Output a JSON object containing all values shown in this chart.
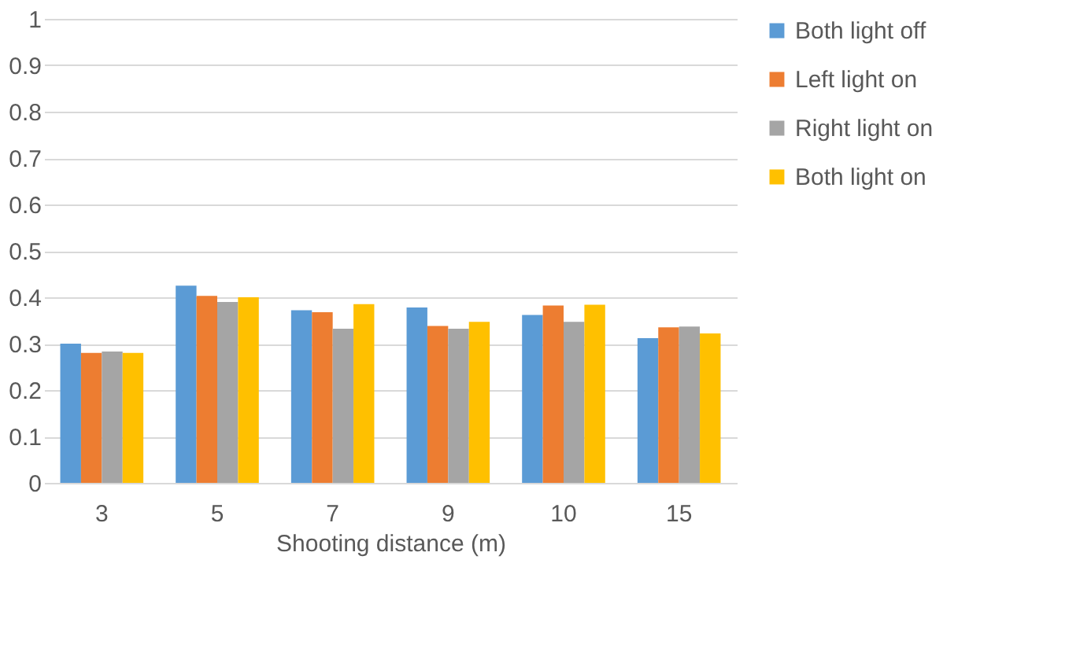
{
  "chart_data": {
    "type": "bar",
    "xlabel": "Shooting distance (m)",
    "categories": [
      "3",
      "5",
      "7",
      "9",
      "10",
      "15"
    ],
    "series": [
      {
        "name": "Both light off",
        "color": "#5b9bd5",
        "values": [
          0.3,
          0.425,
          0.372,
          0.378,
          0.362,
          0.312
        ]
      },
      {
        "name": "Left light on",
        "color": "#ed7d31",
        "values": [
          0.28,
          0.403,
          0.368,
          0.338,
          0.382,
          0.335
        ]
      },
      {
        "name": "Right light on",
        "color": "#a5a5a5",
        "values": [
          0.283,
          0.39,
          0.332,
          0.332,
          0.347,
          0.337
        ]
      },
      {
        "name": "Both light on",
        "color": "#ffc000",
        "values": [
          0.28,
          0.4,
          0.385,
          0.347,
          0.384,
          0.322
        ]
      }
    ],
    "ylim": [
      0,
      1
    ],
    "yticks": [
      0,
      0.1,
      0.2,
      0.3,
      0.4,
      0.5,
      0.6,
      0.7,
      0.8,
      0.9,
      1
    ],
    "grid": "y",
    "legend": "right"
  }
}
